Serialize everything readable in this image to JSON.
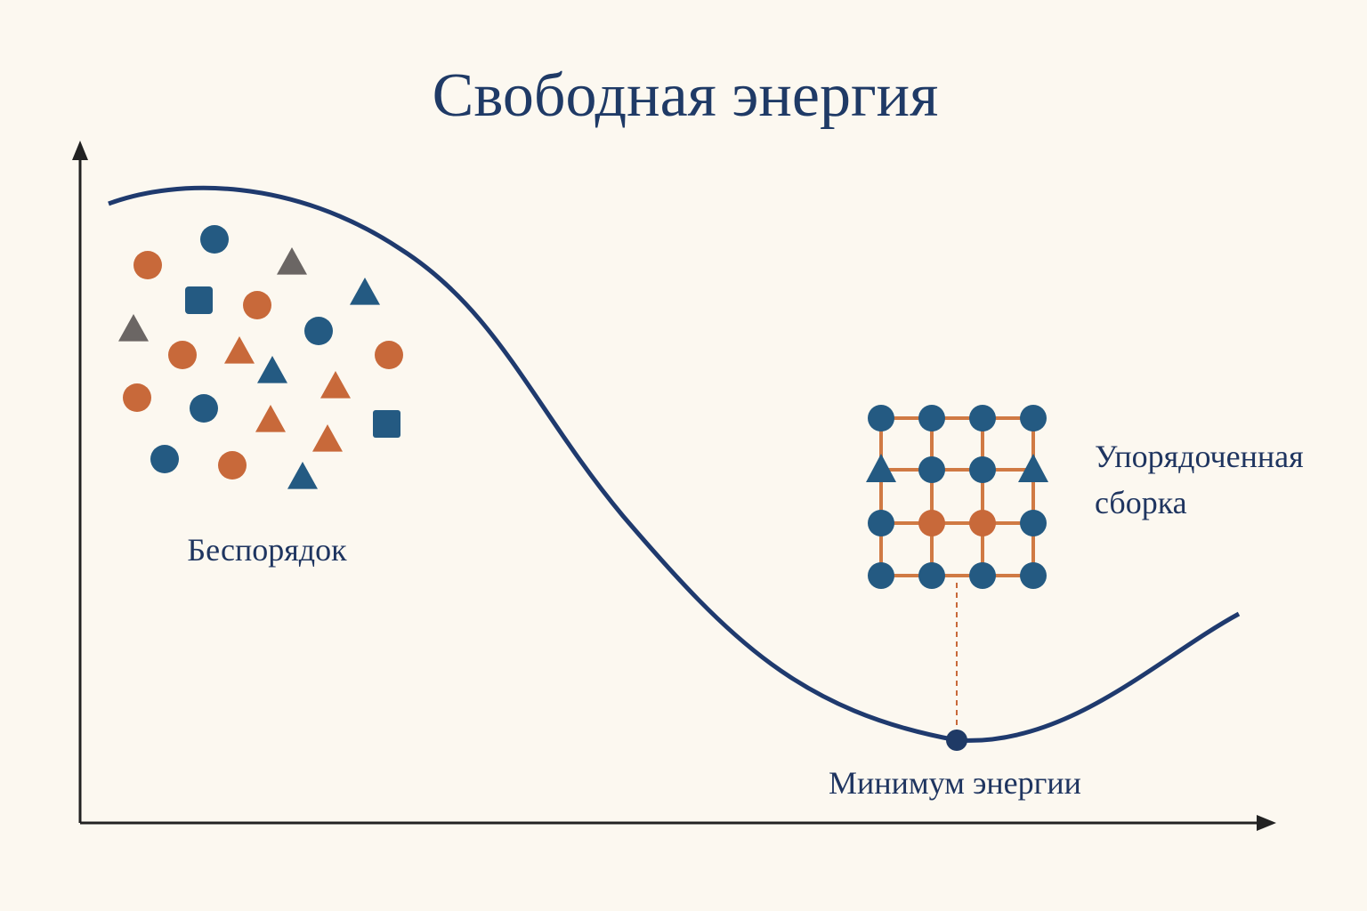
{
  "title": "Свободная энергия",
  "labels": {
    "disorder": "Беспорядок",
    "ordered": [
      "Упорядоченная",
      "сборка"
    ],
    "minimum": "Минимум энергии"
  }
}
